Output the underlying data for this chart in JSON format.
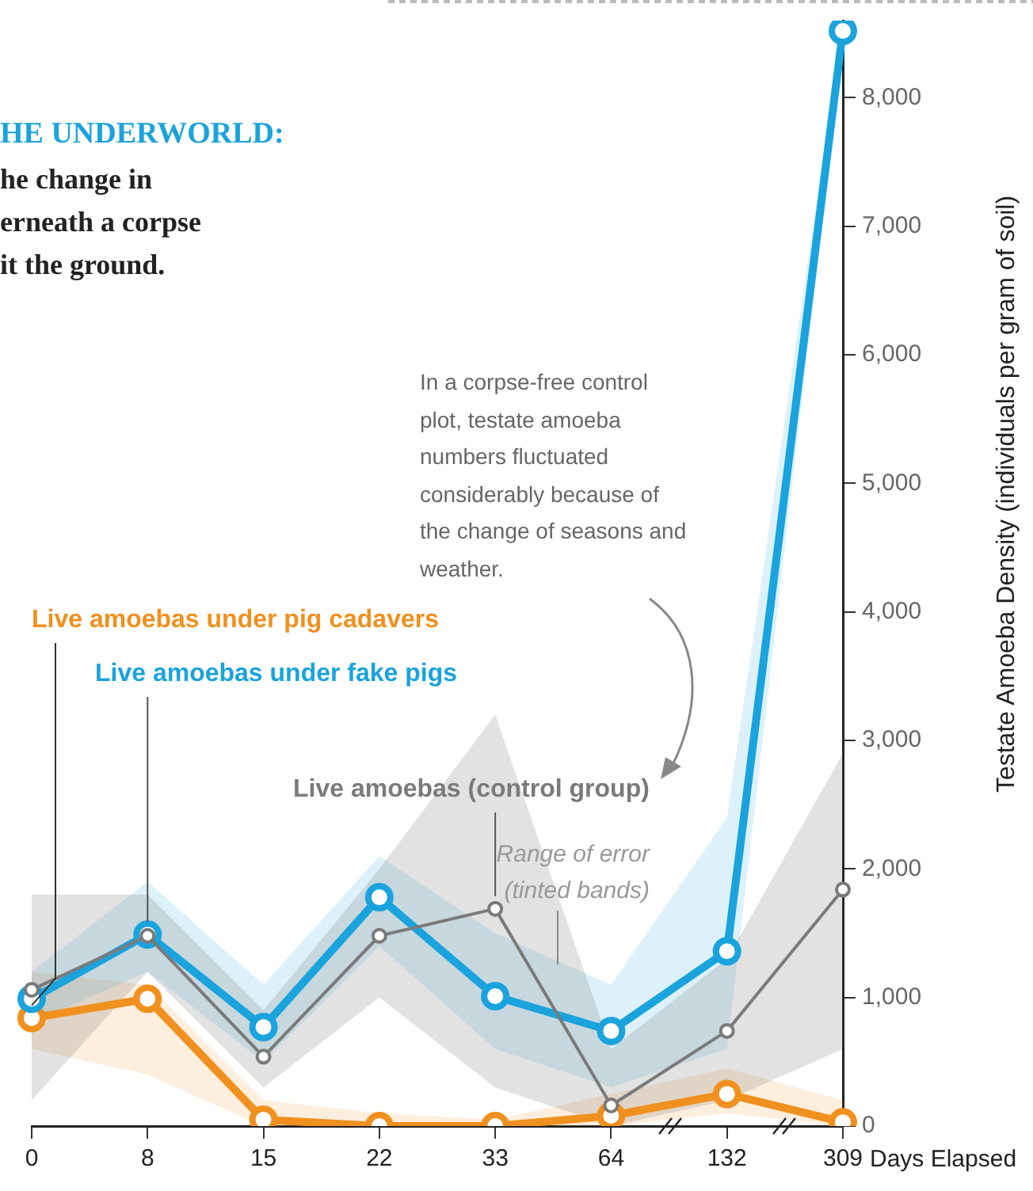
{
  "chart_data": {
    "type": "line",
    "title": "HE UNDERWORLD:",
    "subtitle": "he change in\nerneath a corpse\nit the ground.",
    "xlabel": "Days Elapsed",
    "ylabel": "Testate Amoeba Density (individuals per gram of soil)",
    "categories": [
      "0",
      "8",
      "15",
      "22",
      "33",
      "64",
      "132",
      "309"
    ],
    "series": [
      {
        "name": "Live amoebas (control group)",
        "color": "#7a7a7a",
        "values": [
          1060,
          1480,
          540,
          1480,
          1690,
          160,
          740,
          1840
        ],
        "lower": [
          200,
          1200,
          300,
          1000,
          300,
          0,
          200,
          600
        ],
        "upper": [
          1800,
          1800,
          900,
          2000,
          3200,
          600,
          1300,
          2900
        ]
      },
      {
        "name": "Live amoebas under fake pigs",
        "color": "#1aa3dc",
        "values": [
          990,
          1490,
          770,
          1780,
          1010,
          740,
          1360,
          8520
        ],
        "lower": [
          800,
          1200,
          500,
          1400,
          600,
          300,
          600,
          8400
        ],
        "upper": [
          1200,
          1900,
          1100,
          2100,
          1500,
          1100,
          2400,
          8600
        ]
      },
      {
        "name": "Live amoebas under pig cadavers",
        "color": "#f0901e",
        "values": [
          840,
          990,
          50,
          0,
          0,
          80,
          250,
          30
        ],
        "lower": [
          600,
          400,
          0,
          0,
          0,
          0,
          100,
          0
        ],
        "upper": [
          1200,
          1100,
          200,
          100,
          50,
          250,
          450,
          200
        ]
      }
    ],
    "ylim": [
      0,
      8600
    ],
    "yticks": [
      {
        "value": 0,
        "label": "0"
      },
      {
        "value": 1000,
        "label": "1,000"
      },
      {
        "value": 2000,
        "label": "2,000"
      },
      {
        "value": 3000,
        "label": "3,000"
      },
      {
        "value": 4000,
        "label": "4,000"
      },
      {
        "value": 5000,
        "label": "5,000"
      },
      {
        "value": 6000,
        "label": "6,000"
      },
      {
        "value": 7000,
        "label": "7,000"
      },
      {
        "value": 8000,
        "label": "8,000"
      }
    ],
    "marker": "circle",
    "line_style": "solid",
    "grid": false,
    "annotations": [
      "In a corpse-free control plot, testate amoeba numbers fluctuated considerably because of the change of seasons and weather.",
      "Range of error (tinted bands)"
    ]
  }
}
